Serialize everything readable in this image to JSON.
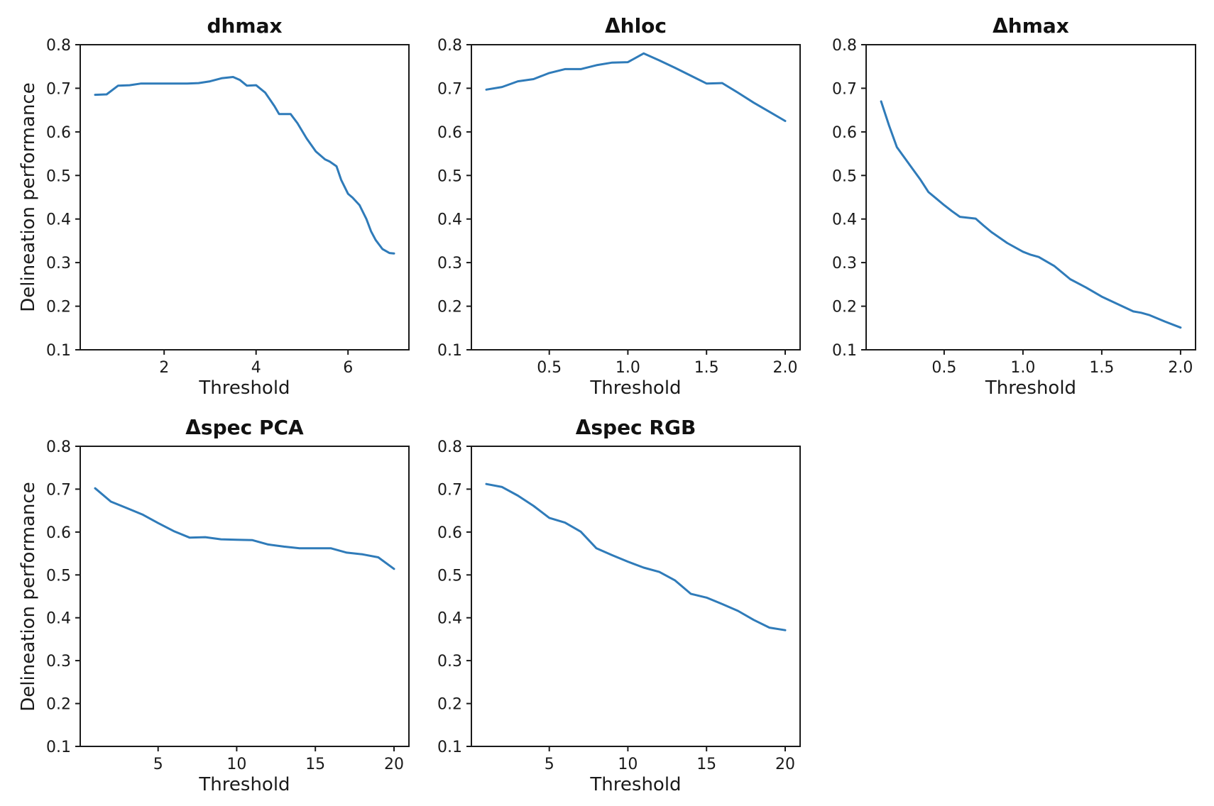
{
  "figure": {
    "background": "#ffffff",
    "line_color": "#2f7bb9",
    "text_color": "#1a1a1a"
  },
  "chart_data": [
    {
      "type": "line",
      "title": "dhmax",
      "xlabel": "Threshold",
      "ylabel": "Delineation performance",
      "xlim": [
        0.175,
        7.325
      ],
      "ylim": [
        0.1,
        0.8
      ],
      "grid": false,
      "legend": null,
      "x_ticks": [
        2,
        4,
        6
      ],
      "x_tick_labels": [
        "2",
        "4",
        "6"
      ],
      "y_ticks": [
        0.1,
        0.2,
        0.3,
        0.4,
        0.5,
        0.6,
        0.7,
        0.8
      ],
      "y_tick_labels": [
        "0.1",
        "0.2",
        "0.3",
        "0.4",
        "0.5",
        "0.6",
        "0.7",
        "0.8"
      ],
      "x": [
        0.5,
        0.75,
        1.0,
        1.25,
        1.5,
        1.75,
        2.0,
        2.25,
        2.5,
        2.75,
        3.0,
        3.25,
        3.5,
        3.65,
        3.8,
        4.0,
        4.2,
        4.4,
        4.5,
        4.75,
        4.9,
        5.1,
        5.3,
        5.5,
        5.6,
        5.75,
        5.85,
        6.0,
        6.1,
        6.25,
        6.4,
        6.5,
        6.6,
        6.75,
        6.9,
        7.0
      ],
      "y": [
        0.685,
        0.686,
        0.706,
        0.707,
        0.711,
        0.711,
        0.711,
        0.711,
        0.711,
        0.712,
        0.716,
        0.723,
        0.726,
        0.719,
        0.706,
        0.707,
        0.69,
        0.659,
        0.641,
        0.641,
        0.62,
        0.585,
        0.555,
        0.537,
        0.532,
        0.521,
        0.49,
        0.458,
        0.449,
        0.432,
        0.4,
        0.372,
        0.352,
        0.331,
        0.322,
        0.321
      ]
    },
    {
      "type": "line",
      "title": "Δhloc",
      "xlabel": "Threshold",
      "xlim": [
        0.005,
        2.095
      ],
      "ylim": [
        0.1,
        0.8
      ],
      "grid": false,
      "legend": null,
      "x_ticks": [
        0.5,
        1.0,
        1.5,
        2.0
      ],
      "x_tick_labels": [
        "0.5",
        "1.0",
        "1.5",
        "2.0"
      ],
      "y_ticks": [
        0.1,
        0.2,
        0.3,
        0.4,
        0.5,
        0.6,
        0.7,
        0.8
      ],
      "y_tick_labels": [
        "0.1",
        "0.2",
        "0.3",
        "0.4",
        "0.5",
        "0.6",
        "0.7",
        "0.8"
      ],
      "x": [
        0.1,
        0.2,
        0.3,
        0.4,
        0.5,
        0.6,
        0.7,
        0.8,
        0.9,
        1.0,
        1.1,
        1.2,
        1.3,
        1.4,
        1.5,
        1.6,
        1.7,
        1.8,
        1.9,
        2.0
      ],
      "y": [
        0.697,
        0.703,
        0.716,
        0.721,
        0.735,
        0.744,
        0.744,
        0.753,
        0.759,
        0.76,
        0.78,
        0.764,
        0.747,
        0.729,
        0.711,
        0.712,
        0.69,
        0.667,
        0.646,
        0.625
      ]
    },
    {
      "type": "line",
      "title": "Δhmax",
      "xlabel": "Threshold",
      "xlim": [
        0.005,
        2.095
      ],
      "ylim": [
        0.1,
        0.8
      ],
      "grid": false,
      "legend": null,
      "x_ticks": [
        0.5,
        1.0,
        1.5,
        2.0
      ],
      "x_tick_labels": [
        "0.5",
        "1.0",
        "1.5",
        "2.0"
      ],
      "y_ticks": [
        0.1,
        0.2,
        0.3,
        0.4,
        0.5,
        0.6,
        0.7,
        0.8
      ],
      "y_tick_labels": [
        "0.1",
        "0.2",
        "0.3",
        "0.4",
        "0.5",
        "0.6",
        "0.7",
        "0.8"
      ],
      "x": [
        0.1,
        0.15,
        0.2,
        0.25,
        0.3,
        0.35,
        0.4,
        0.45,
        0.5,
        0.55,
        0.6,
        0.65,
        0.7,
        0.75,
        0.8,
        0.9,
        1.0,
        1.05,
        1.1,
        1.2,
        1.3,
        1.4,
        1.5,
        1.6,
        1.7,
        1.75,
        1.8,
        1.9,
        2.0
      ],
      "y": [
        0.67,
        0.615,
        0.565,
        0.54,
        0.515,
        0.49,
        0.462,
        0.447,
        0.432,
        0.418,
        0.405,
        0.403,
        0.401,
        0.385,
        0.37,
        0.345,
        0.325,
        0.318,
        0.313,
        0.292,
        0.262,
        0.243,
        0.222,
        0.205,
        0.188,
        0.185,
        0.18,
        0.165,
        0.151
      ]
    },
    {
      "type": "line",
      "title": "Δspec PCA",
      "xlabel": "Threshold",
      "ylabel": "Delineation performance",
      "xlim": [
        0.05,
        20.95
      ],
      "ylim": [
        0.1,
        0.8
      ],
      "grid": false,
      "legend": null,
      "x_ticks": [
        5,
        10,
        15,
        20
      ],
      "x_tick_labels": [
        "5",
        "10",
        "15",
        "20"
      ],
      "y_ticks": [
        0.1,
        0.2,
        0.3,
        0.4,
        0.5,
        0.6,
        0.7,
        0.8
      ],
      "y_tick_labels": [
        "0.1",
        "0.2",
        "0.3",
        "0.4",
        "0.5",
        "0.6",
        "0.7",
        "0.8"
      ],
      "x": [
        1,
        2,
        3,
        4,
        5,
        6,
        7,
        8,
        9,
        10,
        11,
        12,
        13,
        14,
        15,
        16,
        17,
        18,
        19,
        20
      ],
      "y": [
        0.702,
        0.671,
        0.656,
        0.641,
        0.621,
        0.602,
        0.587,
        0.588,
        0.583,
        0.582,
        0.581,
        0.571,
        0.566,
        0.562,
        0.562,
        0.562,
        0.552,
        0.548,
        0.541,
        0.514
      ]
    },
    {
      "type": "line",
      "title": "Δspec RGB",
      "xlabel": "Threshold",
      "xlim": [
        0.05,
        20.95
      ],
      "ylim": [
        0.1,
        0.8
      ],
      "grid": false,
      "legend": null,
      "x_ticks": [
        5,
        10,
        15,
        20
      ],
      "x_tick_labels": [
        "5",
        "10",
        "15",
        "20"
      ],
      "y_ticks": [
        0.1,
        0.2,
        0.3,
        0.4,
        0.5,
        0.6,
        0.7,
        0.8
      ],
      "y_tick_labels": [
        "0.1",
        "0.2",
        "0.3",
        "0.4",
        "0.5",
        "0.6",
        "0.7",
        "0.8"
      ],
      "x": [
        1,
        2,
        3,
        4,
        5,
        6,
        7,
        8,
        9,
        10,
        11,
        12,
        13,
        14,
        15,
        16,
        17,
        18,
        19,
        20
      ],
      "y": [
        0.712,
        0.705,
        0.685,
        0.661,
        0.633,
        0.622,
        0.601,
        0.562,
        0.546,
        0.531,
        0.517,
        0.507,
        0.487,
        0.456,
        0.447,
        0.432,
        0.416,
        0.395,
        0.377,
        0.371
      ]
    }
  ]
}
